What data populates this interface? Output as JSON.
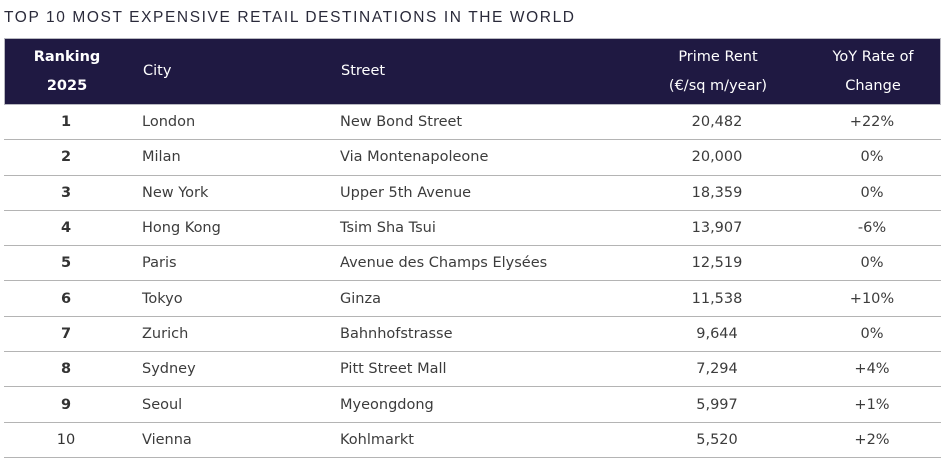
{
  "title": "TOP 10 MOST EXPENSIVE RETAIL DESTINATIONS IN THE WORLD",
  "colors": {
    "header_bg": "#1f1942",
    "header_text": "#ffffff",
    "row_divider": "#b4b4b4",
    "body_text": "#3c3c3c"
  },
  "columns": {
    "rank_line1": "Ranking",
    "rank_line2": "2025",
    "city": "City",
    "street": "Street",
    "rent_line1": "Prime Rent",
    "rent_line2": "(€/sq m/year)",
    "yoy_line1": "YoY Rate of",
    "yoy_line2": "Change"
  },
  "rows": [
    {
      "rank": "1",
      "city": "London",
      "street": "New Bond Street",
      "rent": "20,482",
      "yoy": "+22%"
    },
    {
      "rank": "2",
      "city": "Milan",
      "street": "Via Montenapoleone",
      "rent": "20,000",
      "yoy": "0%"
    },
    {
      "rank": "3",
      "city": "New York",
      "street": "Upper 5th Avenue",
      "rent": "18,359",
      "yoy": "0%"
    },
    {
      "rank": "4",
      "city": "Hong Kong",
      "street": "Tsim Sha Tsui",
      "rent": "13,907",
      "yoy": "-6%"
    },
    {
      "rank": "5",
      "city": "Paris",
      "street": "Avenue des Champs Elysées",
      "rent": "12,519",
      "yoy": "0%"
    },
    {
      "rank": "6",
      "city": "Tokyo",
      "street": "Ginza",
      "rent": "11,538",
      "yoy": "+10%"
    },
    {
      "rank": "7",
      "city": "Zurich",
      "street": "Bahnhofstrasse",
      "rent": "9,644",
      "yoy": "0%"
    },
    {
      "rank": "8",
      "city": "Sydney",
      "street": "Pitt Street Mall",
      "rent": "7,294",
      "yoy": "+4%"
    },
    {
      "rank": "9",
      "city": "Seoul",
      "street": "Myeongdong",
      "rent": "5,997",
      "yoy": "+1%"
    },
    {
      "rank": "10",
      "city": "Vienna",
      "street": "Kohlmarkt",
      "rent": "5,520",
      "yoy": "+2%"
    }
  ]
}
